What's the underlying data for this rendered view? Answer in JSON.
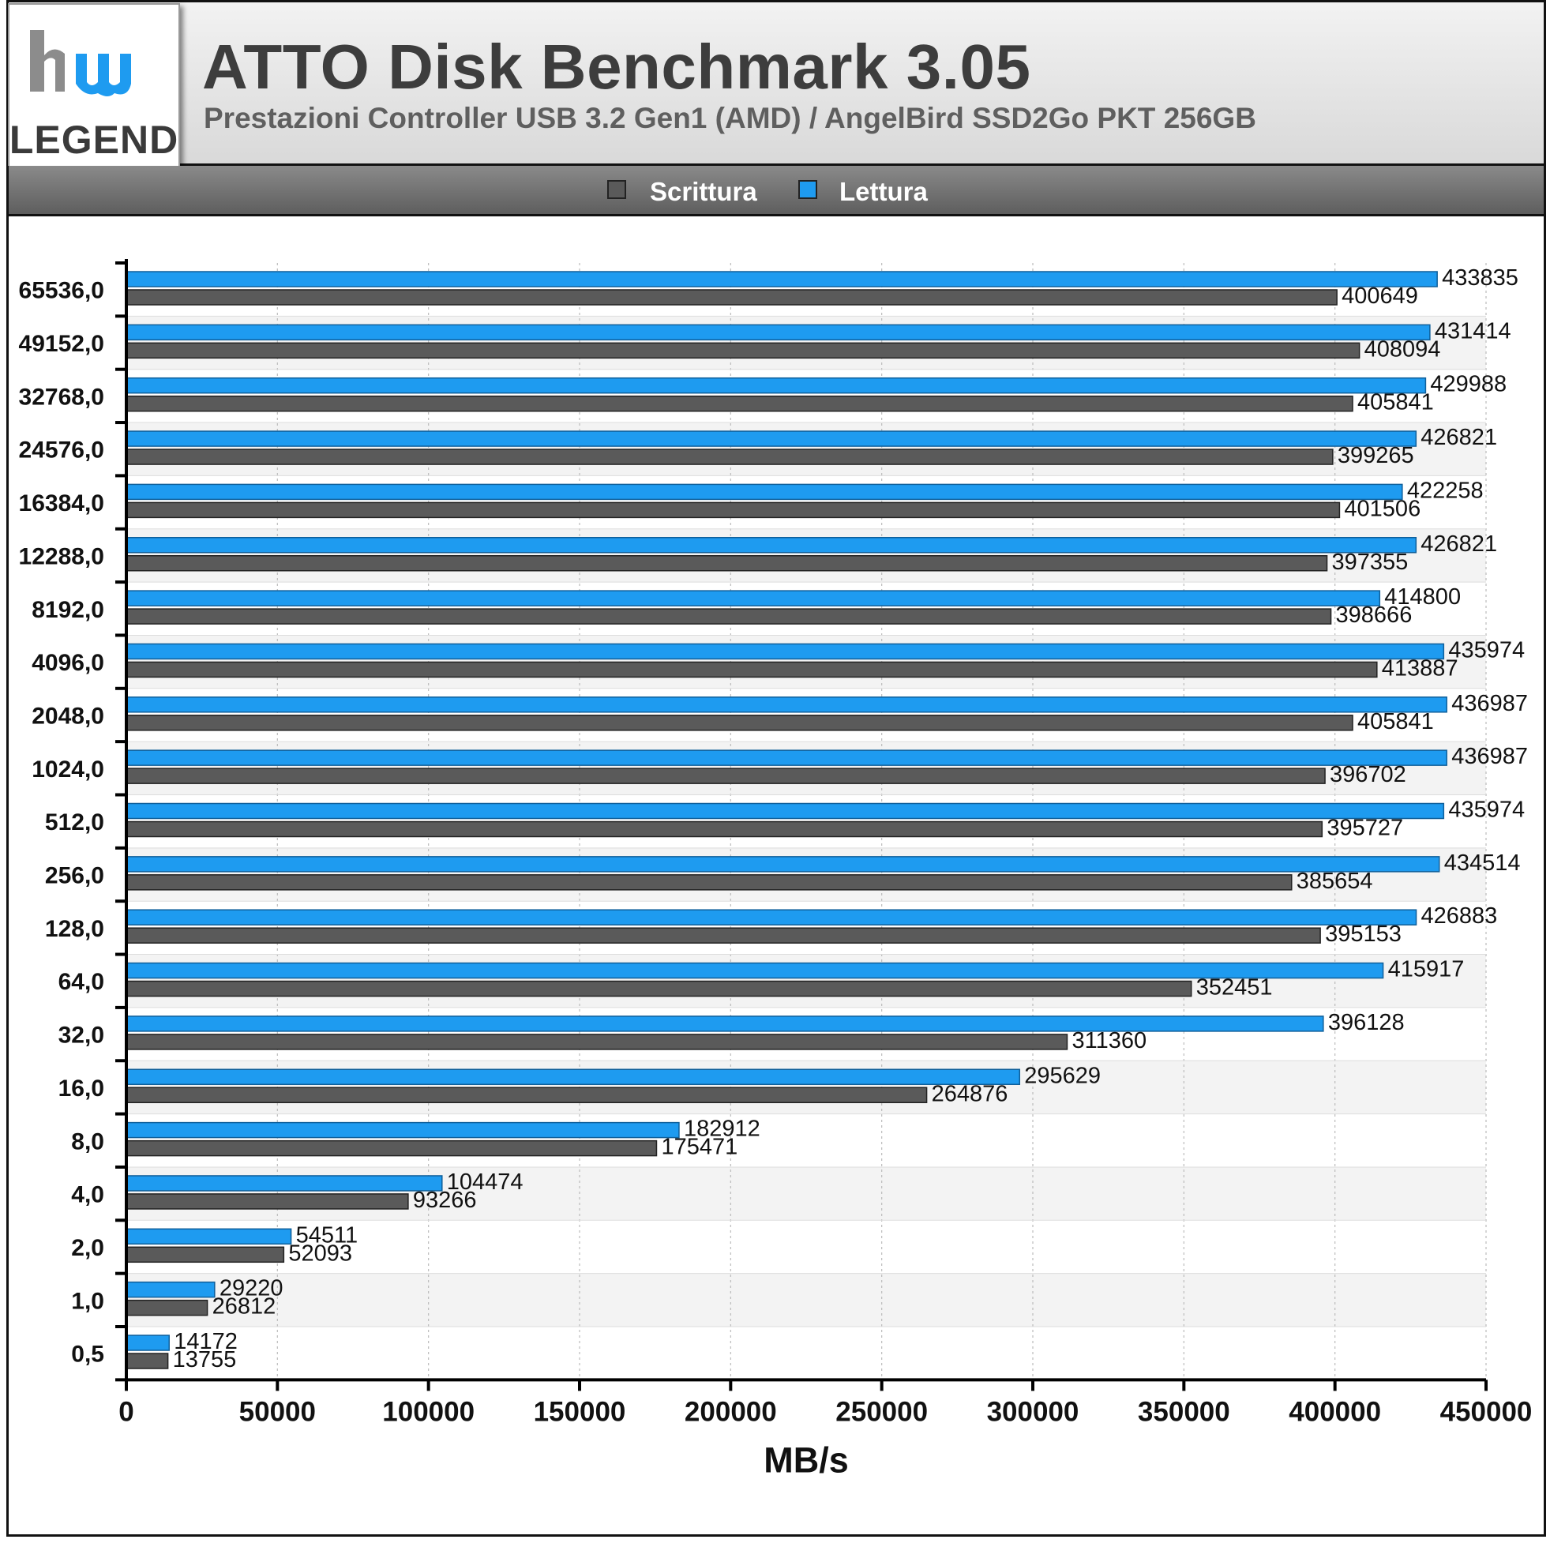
{
  "header": {
    "title": "ATTO Disk Benchmark 3.05",
    "subtitle": "Prestazioni Controller USB 3.2 Gen1 (AMD) / AngelBird SSD2Go PKT 256GB",
    "logo_text": "hw LEGEND"
  },
  "colors": {
    "write": "#5a5a5a",
    "read": "#1e9bf0",
    "grid": "#bbbbbb",
    "band": "#f3f3f3"
  },
  "chart_data": {
    "type": "bar",
    "orientation": "horizontal",
    "categories": [
      "65536,0",
      "49152,0",
      "32768,0",
      "24576,0",
      "16384,0",
      "12288,0",
      "8192,0",
      "4096,0",
      "2048,0",
      "1024,0",
      "512,0",
      "256,0",
      "128,0",
      "64,0",
      "32,0",
      "16,0",
      "8,0",
      "4,0",
      "2,0",
      "1,0",
      "0,5"
    ],
    "series": [
      {
        "name": "Lettura",
        "color": "#1e9bf0",
        "values": [
          433835,
          431414,
          429988,
          426821,
          422258,
          426821,
          414800,
          435974,
          436987,
          436987,
          435974,
          434514,
          426883,
          415917,
          396128,
          295629,
          182912,
          104474,
          54511,
          29220,
          14172
        ]
      },
      {
        "name": "Scrittura",
        "color": "#5a5a5a",
        "values": [
          400649,
          408094,
          405841,
          399265,
          401506,
          397355,
          398666,
          413887,
          405841,
          396702,
          395727,
          385654,
          395153,
          352451,
          311360,
          264876,
          175471,
          93266,
          52093,
          26812,
          13755
        ]
      }
    ],
    "legend": [
      "Scrittura",
      "Lettura"
    ],
    "legend_position": "top",
    "xlabel": "MB/s",
    "xlim": [
      0,
      450000
    ],
    "xticks": [
      "0",
      "50000",
      "100000",
      "150000",
      "200000",
      "250000",
      "300000",
      "350000",
      "400000",
      "450000"
    ],
    "grid": true
  }
}
